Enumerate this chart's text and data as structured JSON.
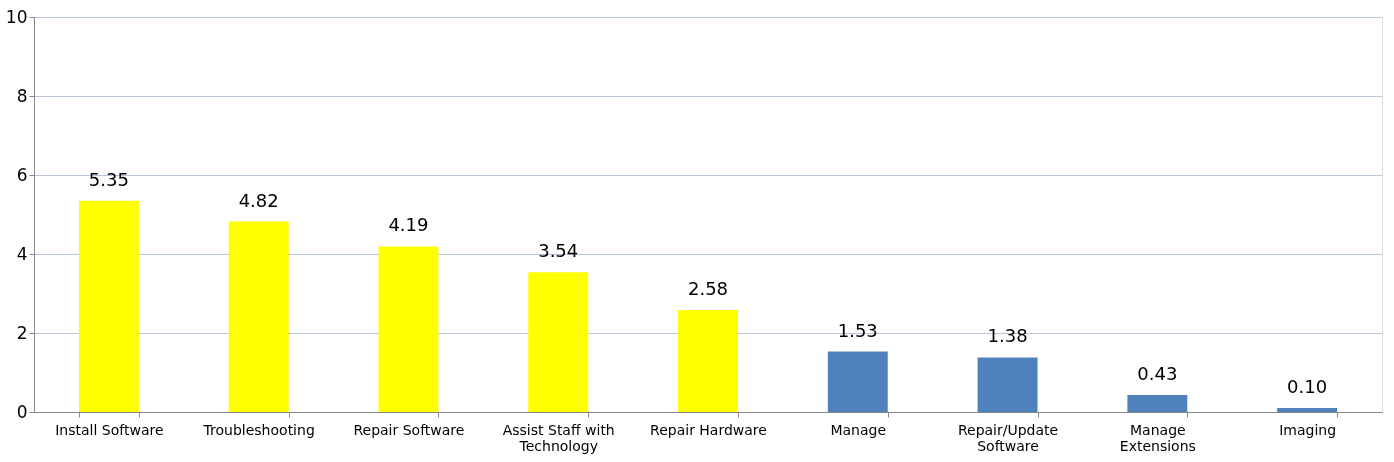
{
  "chart_data": {
    "type": "bar",
    "categories": [
      "Install Software",
      "Troubleshooting",
      "Repair Software",
      "Assist Staff with\nTechnology",
      "Repair Hardware",
      "Manage",
      "Repair/Update\nSoftware",
      "Manage\nExtensions",
      "Imaging"
    ],
    "values": [
      5.35,
      4.82,
      4.19,
      3.54,
      2.58,
      1.53,
      1.38,
      0.43,
      0.1
    ],
    "value_labels": [
      "5.35",
      "4.82",
      "4.19",
      "3.54",
      "2.58",
      "1.53",
      "1.38",
      "0.43",
      "0.10"
    ],
    "colors": [
      "#ffff00",
      "#ffff00",
      "#ffff00",
      "#ffff00",
      "#ffff00",
      "#4f81bd",
      "#4f81bd",
      "#4f81bd",
      "#4f81bd"
    ],
    "ylim": [
      0,
      10
    ],
    "yticks": [
      0,
      2,
      4,
      6,
      8,
      10
    ],
    "grid": "y"
  }
}
